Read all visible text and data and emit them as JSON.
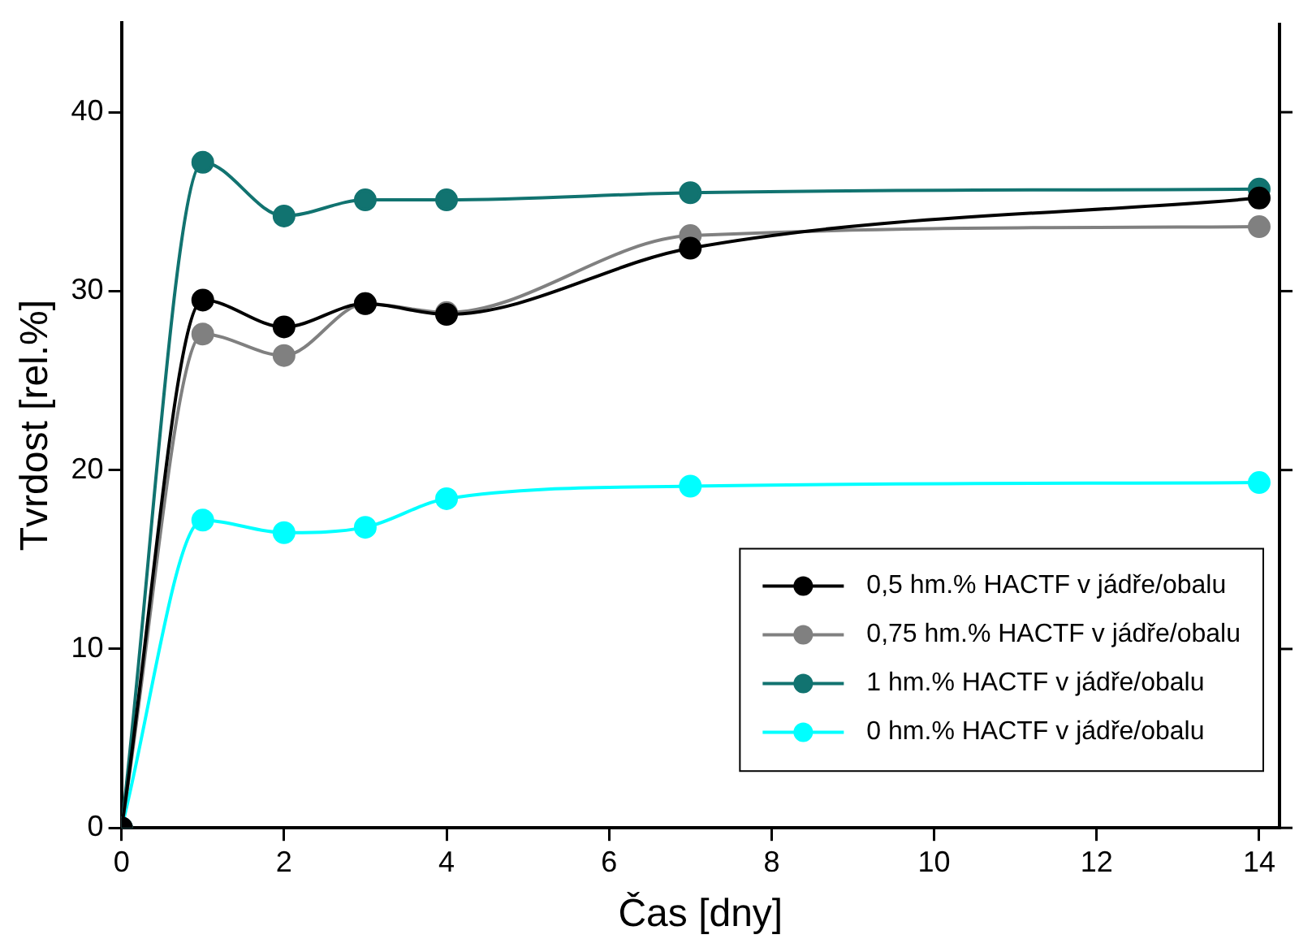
{
  "chart_data": {
    "type": "line",
    "xlabel": "Čas [dny]",
    "ylabel": "Tvrdost [rel.%]",
    "x": [
      0,
      1,
      2,
      3,
      4,
      7,
      14
    ],
    "xlim": [
      0,
      14.25
    ],
    "xticks": [
      0,
      2,
      4,
      6,
      8,
      10,
      12,
      14
    ],
    "ylim": [
      0,
      45
    ],
    "yticks": [
      0,
      10,
      20,
      30,
      40
    ],
    "grid": false,
    "legend": "bottom right",
    "marker": "circle",
    "line_style": "solid",
    "series": [
      {
        "name": "0,5 hm.% HACTF v jádře/obalu",
        "color": "#000000",
        "values": [
          0,
          29.5,
          28.0,
          29.3,
          28.7,
          32.4,
          35.2
        ]
      },
      {
        "name": "0,75 hm.% HACTF v jádře/obalu",
        "color": "#808080",
        "values": [
          0,
          27.6,
          26.4,
          29.3,
          28.8,
          33.1,
          33.6
        ]
      },
      {
        "name": "1 hm.% HACTF v jádře/obalu",
        "color": "#117370",
        "values": [
          0,
          37.2,
          34.2,
          35.1,
          35.1,
          35.5,
          35.7
        ]
      },
      {
        "name": "0 hm.% HACTF v jádře/obalu",
        "color": "#00ffff",
        "values": [
          0,
          17.2,
          16.5,
          16.8,
          18.4,
          19.1,
          19.3
        ]
      }
    ]
  }
}
